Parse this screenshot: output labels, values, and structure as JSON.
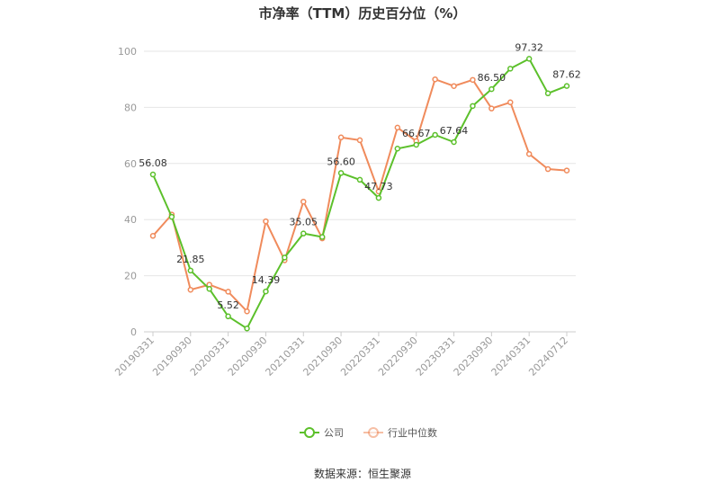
{
  "chart_data": {
    "type": "line",
    "title": "市净率（TTM）历史百分位（%）",
    "x": [
      "20190331",
      "20190630",
      "20190930",
      "20191231",
      "20200331",
      "20200630",
      "20200930",
      "20201231",
      "20210331",
      "20210630",
      "20210930",
      "20211231",
      "20220331",
      "20220630",
      "20220930",
      "20221231",
      "20230331",
      "20230630",
      "20230930",
      "20231231",
      "20240331",
      "20240630",
      "20240712"
    ],
    "x_tick_labels": [
      "20190331",
      "20190930",
      "20200331",
      "20200930",
      "20210331",
      "20210930",
      "20220331",
      "20220930",
      "20230331",
      "20230930",
      "20240331",
      "20240712"
    ],
    "series": [
      {
        "name": "公司",
        "color": "#5cc02b",
        "values": [
          56.08,
          41.0,
          21.85,
          15.3,
          5.52,
          1.2,
          14.39,
          26.5,
          35.05,
          33.8,
          56.6,
          54.2,
          47.73,
          65.3,
          66.67,
          70.2,
          67.64,
          80.5,
          86.5,
          93.8,
          97.32,
          85.0,
          87.62
        ]
      },
      {
        "name": "行业中位数",
        "color": "#f08b5c",
        "values": [
          34.2,
          41.8,
          15.0,
          16.8,
          14.3,
          7.3,
          39.4,
          25.5,
          46.4,
          33.3,
          69.3,
          68.3,
          50.0,
          72.8,
          68.0,
          90.0,
          87.6,
          89.8,
          79.6,
          81.8,
          63.4,
          58.0,
          57.5
        ]
      }
    ],
    "data_labels": [
      {
        "index": 0,
        "text": "56.08"
      },
      {
        "index": 2,
        "text": "21.85"
      },
      {
        "index": 4,
        "text": "5.52"
      },
      {
        "index": 6,
        "text": "14.39"
      },
      {
        "index": 8,
        "text": "35.05"
      },
      {
        "index": 10,
        "text": "56.60"
      },
      {
        "index": 12,
        "text": "47.73"
      },
      {
        "index": 14,
        "text": "66.67"
      },
      {
        "index": 16,
        "text": "67.64"
      },
      {
        "index": 18,
        "text": "86.50"
      },
      {
        "index": 20,
        "text": "97.32"
      },
      {
        "index": 22,
        "text": "87.62"
      }
    ],
    "ylim": [
      0,
      100
    ],
    "yticks": [
      0,
      20,
      40,
      60,
      80,
      100
    ],
    "grid": true,
    "legend_position": "bottom-center",
    "xlabel": "",
    "ylabel": ""
  },
  "source_text": "数据来源：恒生聚源"
}
